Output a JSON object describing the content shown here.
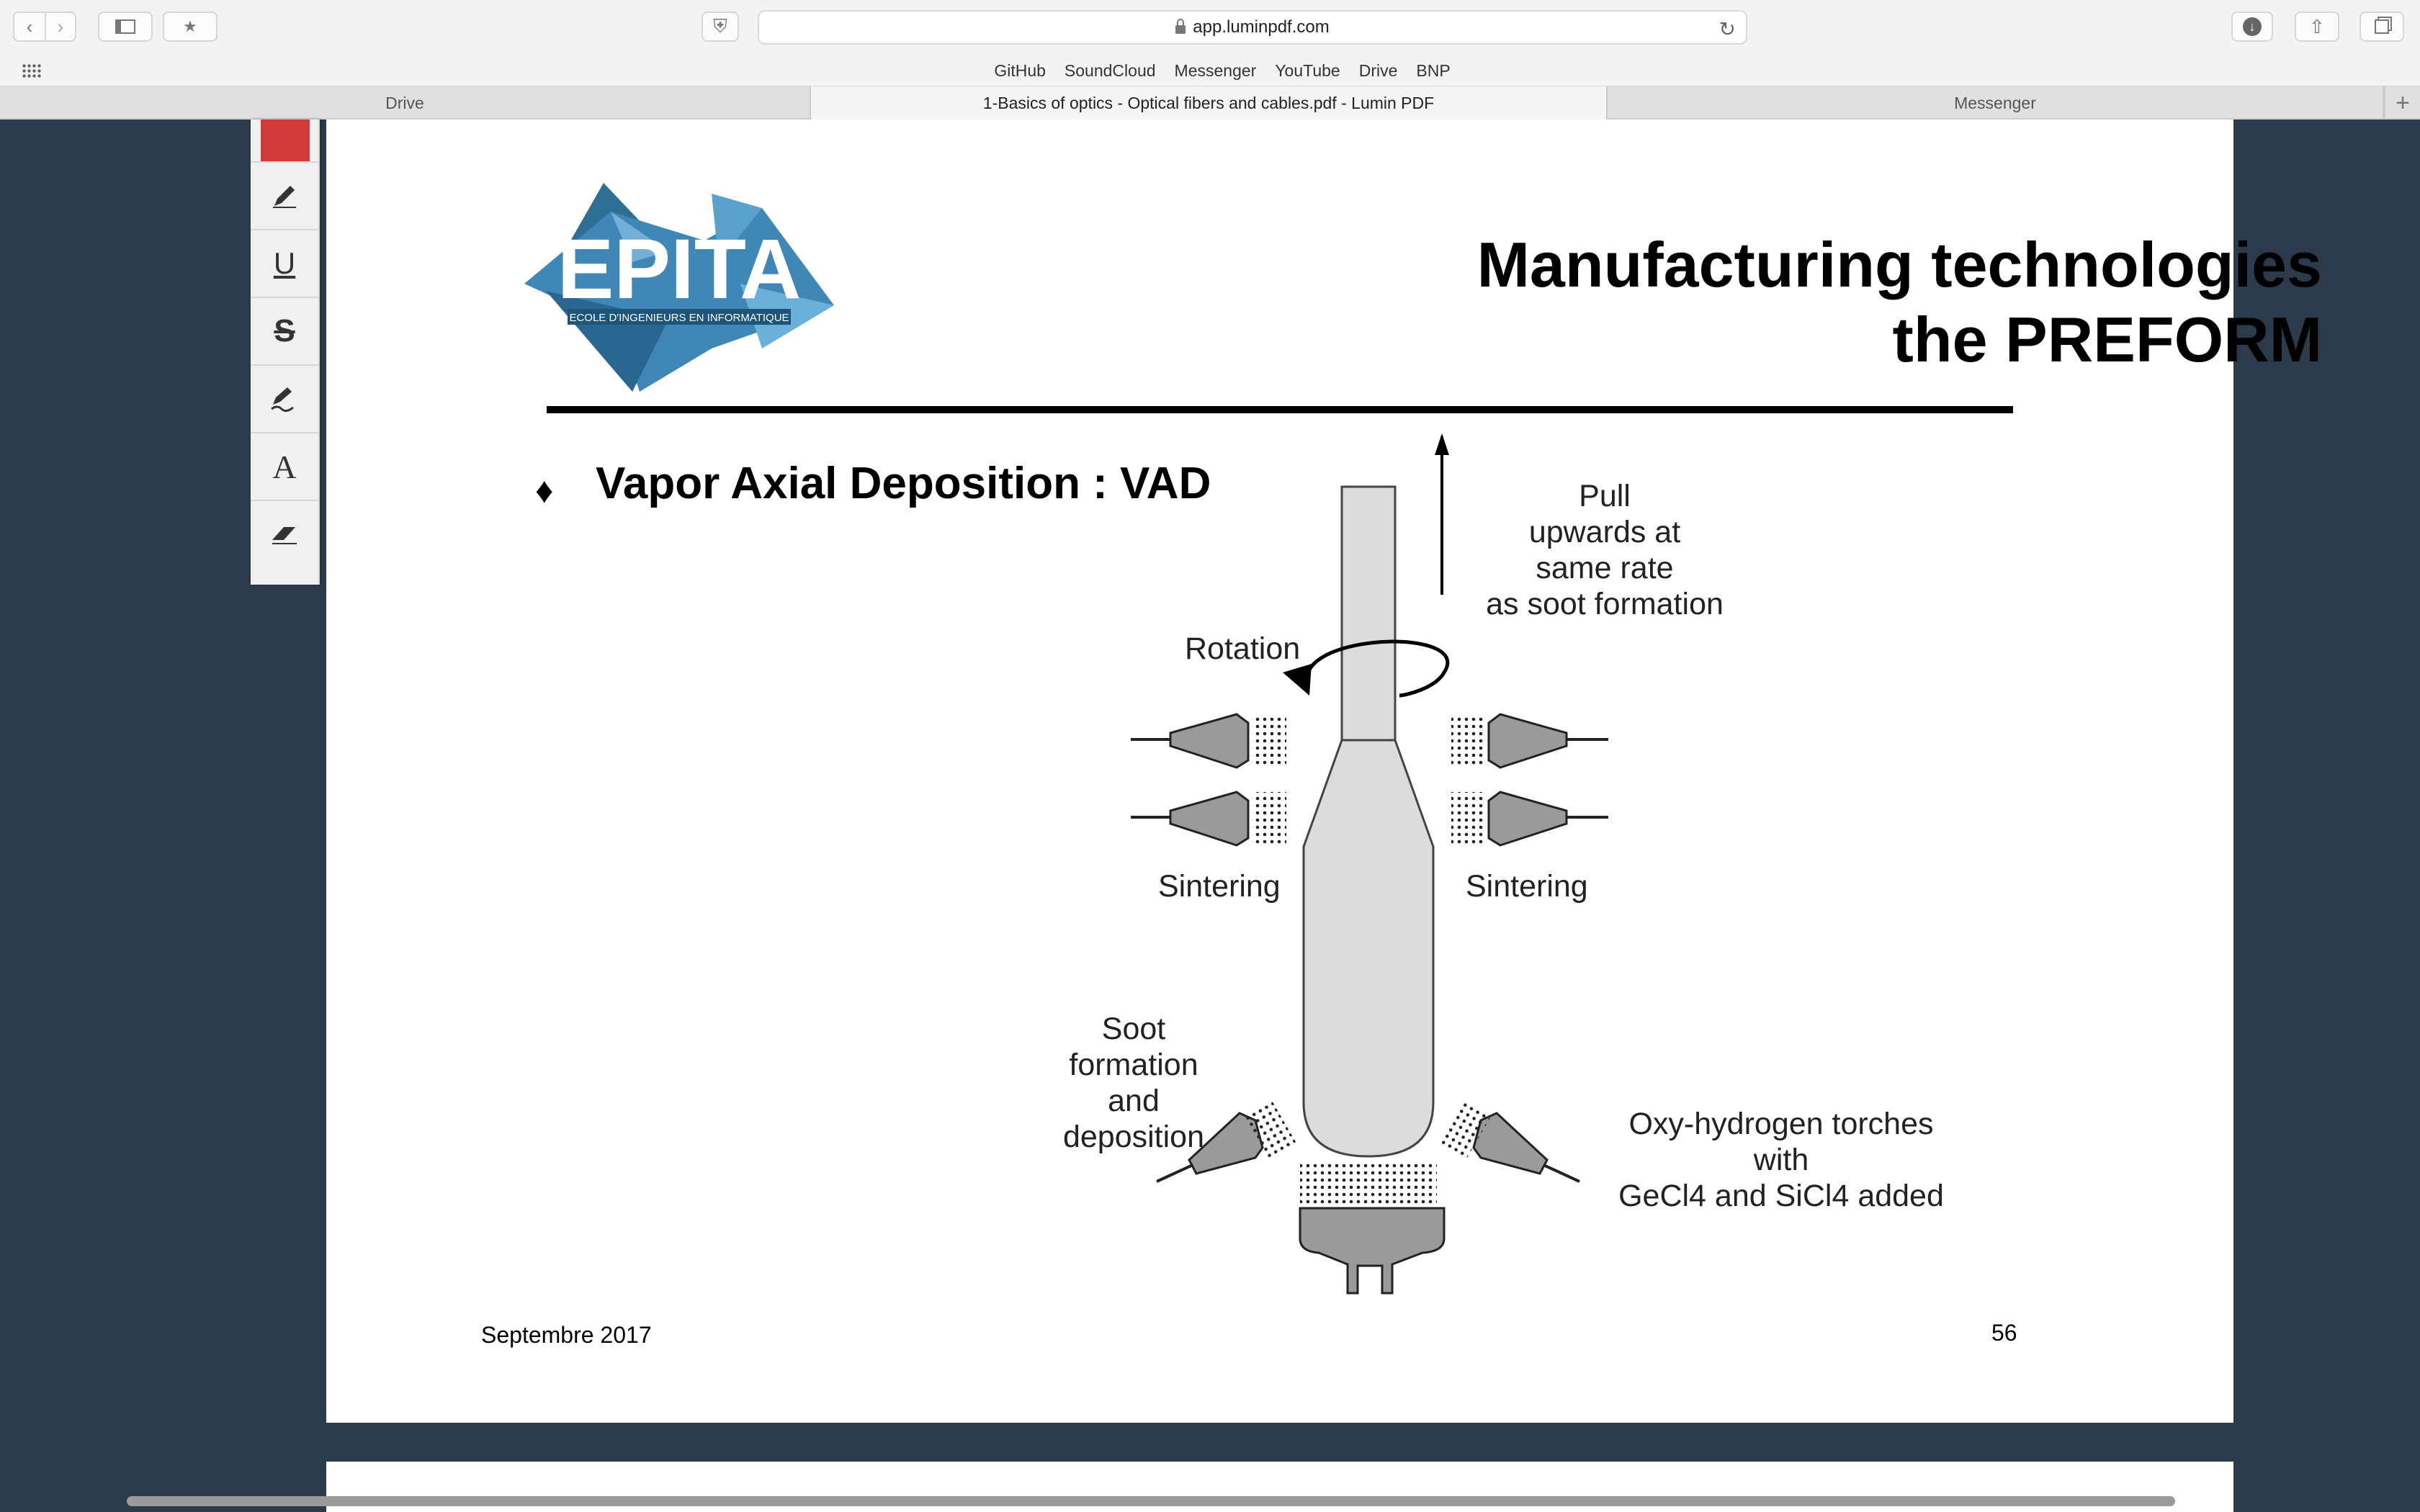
{
  "browser": {
    "url": "app.luminpdf.com",
    "favorites": [
      "GitHub",
      "SoundCloud",
      "Messenger",
      "YouTube",
      "Drive",
      "BNP"
    ],
    "tabs": [
      {
        "label": "Drive"
      },
      {
        "label": "1-Basics of optics - Optical fibers and cables.pdf - Lumin PDF"
      },
      {
        "label": "Messenger"
      }
    ]
  },
  "tools": {
    "current_color": "#d13a3a",
    "underline_glyph": "U",
    "strike_glyph": "S",
    "text_glyph": "A"
  },
  "slide": {
    "logo_text": "EPITA",
    "logo_subtext": "ECOLE D'INGENIEURS EN INFORMATIQUE",
    "title_line1": "Manufacturing technologies",
    "title_line2": "the PREFORM",
    "bullet": "Vapor Axial Deposition : VAD",
    "labels": {
      "pull_1": "Pull",
      "pull_2": "upwards at",
      "pull_3": "same rate",
      "pull_4": "as soot formation",
      "rotation": "Rotation",
      "sintering_left": "Sintering",
      "sintering_right": "Sintering",
      "soot_1": "Soot",
      "soot_2": "formation",
      "soot_3": "and",
      "soot_4": "deposition",
      "torch_1": "Oxy-hydrogen torches",
      "torch_2": "with",
      "torch_3": "GeCl4 and SiCl4 added"
    },
    "footer_date": "Septembre 2017",
    "page_number": "56"
  }
}
